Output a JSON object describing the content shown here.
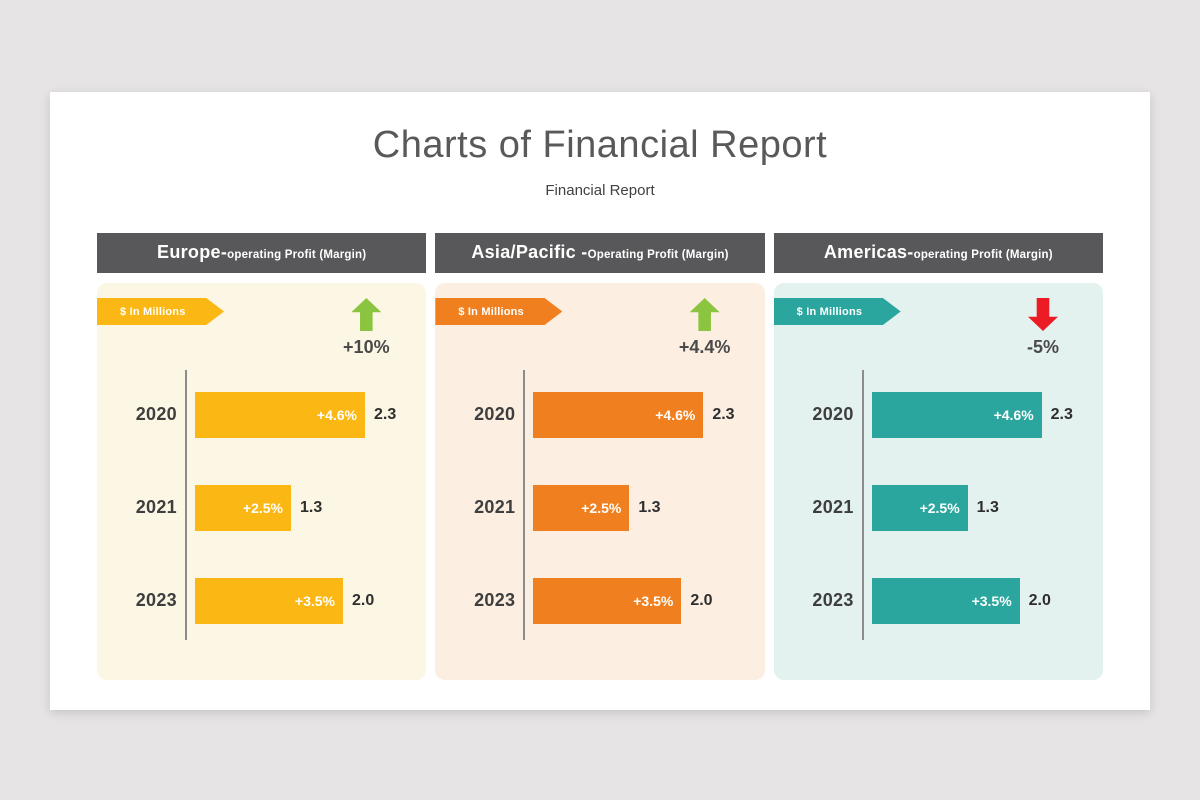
{
  "page": {
    "title": "Charts of Financial Report",
    "subtitle": "Financial Report"
  },
  "colors": {
    "page_background": "#e6e4e5",
    "card_background": "#ffffff",
    "header_bar": "#58585a",
    "trend_up": "#8bc540",
    "trend_down": "#ec1c24",
    "axis_line": "#8c8c8c"
  },
  "panels": [
    {
      "title_main": "Europe-",
      "title_sub": "operating Profit (Margin)",
      "ribbon_label": "$ In Millions",
      "accent": "#fbb713",
      "body_bg": "#fcf6e4",
      "trend_label": "+10%",
      "trend_direction": "up",
      "trend_color": "#8bc540",
      "rows": [
        {
          "year": "2020",
          "pct": "+4.6%",
          "value": "2.3",
          "num": 2.3
        },
        {
          "year": "2021",
          "pct": "+2.5%",
          "value": "1.3",
          "num": 1.3
        },
        {
          "year": "2023",
          "pct": "+3.5%",
          "value": "2.0",
          "num": 2.0
        }
      ]
    },
    {
      "title_main": "Asia/Pacific -",
      "title_sub": "Operating Profit (Margin)",
      "ribbon_label": "$ In Millions",
      "accent": "#f0801f",
      "body_bg": "#fcefe1",
      "trend_label": "+4.4%",
      "trend_direction": "up",
      "trend_color": "#8bc540",
      "rows": [
        {
          "year": "2020",
          "pct": "+4.6%",
          "value": "2.3",
          "num": 2.3
        },
        {
          "year": "2021",
          "pct": "+2.5%",
          "value": "1.3",
          "num": 1.3
        },
        {
          "year": "2023",
          "pct": "+3.5%",
          "value": "2.0",
          "num": 2.0
        }
      ]
    },
    {
      "title_main": "Americas-",
      "title_sub": "operating Profit (Margin)",
      "ribbon_label": "$ In Millions",
      "accent": "#2ba69e",
      "body_bg": "#e3f1ef",
      "trend_label": "-5%",
      "trend_direction": "down",
      "trend_color": "#ec1c24",
      "rows": [
        {
          "year": "2020",
          "pct": "+4.6%",
          "value": "2.3",
          "num": 2.3
        },
        {
          "year": "2021",
          "pct": "+2.5%",
          "value": "1.3",
          "num": 1.3
        },
        {
          "year": "2023",
          "pct": "+3.5%",
          "value": "2.0",
          "num": 2.0
        }
      ]
    }
  ],
  "chart_data": [
    {
      "type": "bar",
      "orientation": "horizontal",
      "title": "Europe-operating Profit (Margin)",
      "unit": "$ In Millions",
      "trend": "+10%",
      "trend_direction": "up",
      "categories": [
        "2020",
        "2021",
        "2023"
      ],
      "values": [
        2.3,
        1.3,
        2.0
      ],
      "bar_labels": [
        "+4.6%",
        "+2.5%",
        "+3.5%"
      ],
      "xlim": [
        0,
        2.5
      ],
      "grid": false,
      "legend": false
    },
    {
      "type": "bar",
      "orientation": "horizontal",
      "title": "Asia/Pacific -Operating Profit (Margin)",
      "unit": "$ In Millions",
      "trend": "+4.4%",
      "trend_direction": "up",
      "categories": [
        "2020",
        "2021",
        "2023"
      ],
      "values": [
        2.3,
        1.3,
        2.0
      ],
      "bar_labels": [
        "+4.6%",
        "+2.5%",
        "+3.5%"
      ],
      "xlim": [
        0,
        2.5
      ],
      "grid": false,
      "legend": false
    },
    {
      "type": "bar",
      "orientation": "horizontal",
      "title": "Americas-operating Profit (Margin)",
      "unit": "$ In Millions",
      "trend": "-5%",
      "trend_direction": "down",
      "categories": [
        "2020",
        "2021",
        "2023"
      ],
      "values": [
        2.3,
        1.3,
        2.0
      ],
      "bar_labels": [
        "+4.6%",
        "+2.5%",
        "+3.5%"
      ],
      "xlim": [
        0,
        2.5
      ],
      "grid": false,
      "legend": false
    }
  ]
}
